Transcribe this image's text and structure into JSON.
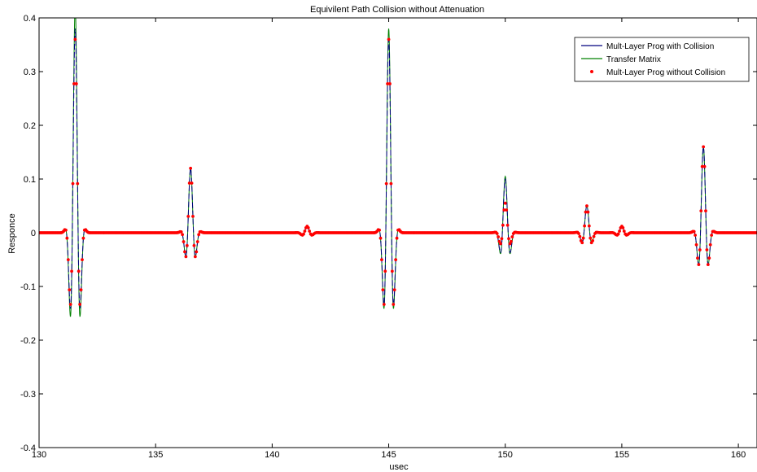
{
  "chart_data": {
    "type": "line",
    "title": "Equivilent Path Collision without Attenuation",
    "xlabel": "usec",
    "ylabel": "Responce",
    "xlim": [
      130,
      160.8
    ],
    "ylim": [
      -0.4,
      0.4
    ],
    "xticks": [
      "130",
      "135",
      "140",
      "145",
      "150",
      "155",
      "160"
    ],
    "yticks": [
      "-0.4",
      "-0.3",
      "-0.2",
      "-0.1",
      "0",
      "0.1",
      "0.2",
      "0.3",
      "0.4"
    ],
    "grid": false,
    "legend_position": "top-right",
    "pulse_frequency_mhz": 2.0,
    "series": [
      {
        "name": "Mult-Layer Prog with Collision",
        "color": "#00007f",
        "style": "dashed line",
        "echoes": [
          {
            "t0": 131.55,
            "amp": 0.38,
            "sigma": 0.16
          },
          {
            "t0": 136.5,
            "amp": 0.12,
            "sigma": 0.16
          },
          {
            "t0": 141.5,
            "amp": 0.012,
            "sigma": 0.16
          },
          {
            "t0": 145.0,
            "amp": 0.36,
            "sigma": 0.16
          },
          {
            "t0": 150.0,
            "amp": 0.1,
            "sigma": 0.16
          },
          {
            "t0": 153.5,
            "amp": 0.05,
            "sigma": 0.16
          },
          {
            "t0": 155.0,
            "amp": 0.012,
            "sigma": 0.16
          },
          {
            "t0": 158.5,
            "amp": 0.16,
            "sigma": 0.16
          }
        ]
      },
      {
        "name": "Transfer Matrix",
        "color": "#008000",
        "style": "solid line",
        "echoes": [
          {
            "t0": 131.55,
            "amp": 0.42,
            "sigma": 0.16
          },
          {
            "t0": 136.5,
            "amp": 0.12,
            "sigma": 0.16
          },
          {
            "t0": 141.5,
            "amp": 0.012,
            "sigma": 0.16
          },
          {
            "t0": 145.0,
            "amp": 0.38,
            "sigma": 0.16
          },
          {
            "t0": 150.0,
            "amp": 0.105,
            "sigma": 0.16
          },
          {
            "t0": 153.5,
            "amp": 0.05,
            "sigma": 0.16
          },
          {
            "t0": 155.0,
            "amp": 0.012,
            "sigma": 0.16
          },
          {
            "t0": 158.5,
            "amp": 0.16,
            "sigma": 0.16
          }
        ]
      },
      {
        "name": "Mult-Layer Prog without Collision",
        "color": "#ff0000",
        "style": "dots",
        "echoes": [
          {
            "t0": 131.55,
            "amp": 0.36,
            "sigma": 0.16
          },
          {
            "t0": 136.5,
            "amp": 0.12,
            "sigma": 0.16
          },
          {
            "t0": 141.5,
            "amp": 0.012,
            "sigma": 0.16
          },
          {
            "t0": 145.0,
            "amp": 0.36,
            "sigma": 0.16
          },
          {
            "t0": 150.0,
            "amp": 0.055,
            "sigma": 0.16
          },
          {
            "t0": 153.5,
            "amp": 0.05,
            "sigma": 0.16
          },
          {
            "t0": 155.0,
            "amp": 0.012,
            "sigma": 0.16
          },
          {
            "t0": 158.5,
            "amp": 0.16,
            "sigma": 0.16
          }
        ]
      }
    ]
  }
}
